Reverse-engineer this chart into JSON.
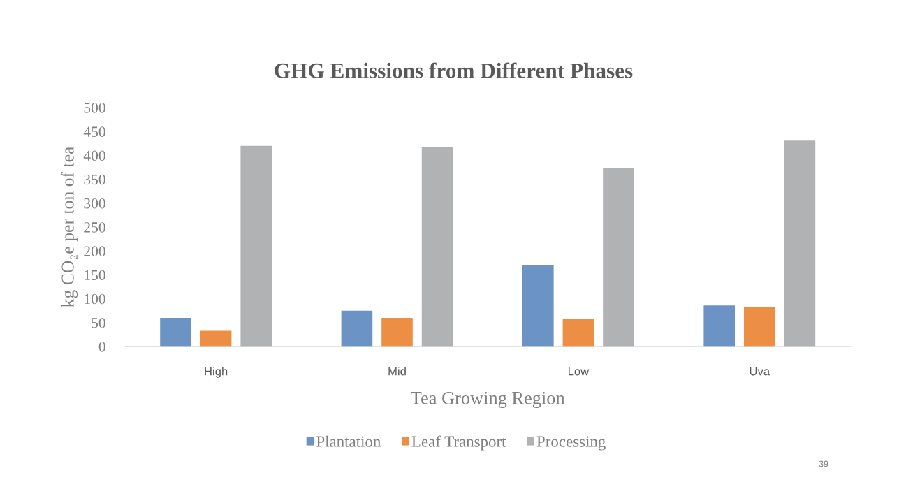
{
  "chart_data": {
    "type": "bar",
    "title": "GHG Emissions from Different Phases",
    "xlabel": "Tea Growing Region",
    "ylabel": "kg CO₂e per ton of tea",
    "categories": [
      "High",
      "Mid",
      "Low",
      "Uva"
    ],
    "series": [
      {
        "name": "Plantation",
        "color": "#6b94c4",
        "values": [
          60,
          75,
          170,
          86
        ]
      },
      {
        "name": "Leaf Transport",
        "color": "#ec8f45",
        "values": [
          33,
          60,
          58,
          83
        ]
      },
      {
        "name": "Processing",
        "color": "#b1b2b4",
        "values": [
          420,
          418,
          374,
          431
        ]
      }
    ],
    "ylim": [
      0,
      500
    ],
    "yticks": [
      0,
      50,
      100,
      150,
      200,
      250,
      300,
      350,
      400,
      450,
      500
    ],
    "legend": "bottom",
    "annotations": [
      "39"
    ]
  }
}
